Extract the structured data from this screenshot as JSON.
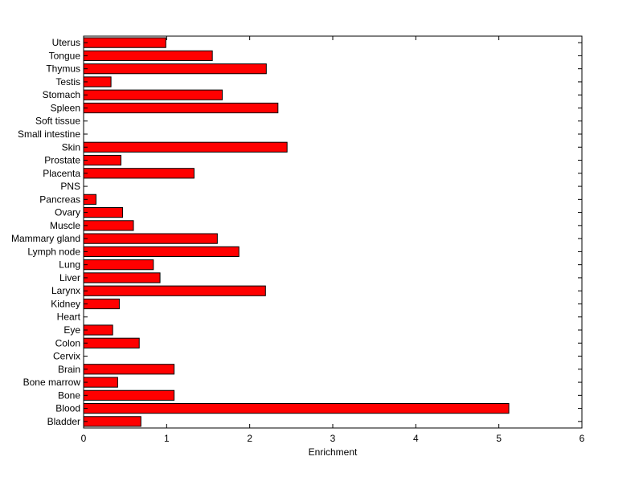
{
  "chart_data": {
    "type": "bar",
    "orientation": "horizontal",
    "categories": [
      "Uterus",
      "Tongue",
      "Thymus",
      "Testis",
      "Stomach",
      "Spleen",
      "Soft tissue",
      "Small intestine",
      "Skin",
      "Prostate",
      "Placenta",
      "PNS",
      "Pancreas",
      "Ovary",
      "Muscle",
      "Mammary gland",
      "Lymph node",
      "Lung",
      "Liver",
      "Larynx",
      "Kidney",
      "Heart",
      "Eye",
      "Colon",
      "Cervix",
      "Brain",
      "Bone marrow",
      "Bone",
      "Blood",
      "Bladder"
    ],
    "values": [
      0.99,
      1.55,
      2.2,
      0.33,
      1.67,
      2.34,
      0,
      0,
      2.45,
      0.45,
      1.33,
      0,
      0.15,
      0.47,
      0.6,
      1.61,
      1.87,
      0.84,
      0.92,
      2.19,
      0.43,
      0,
      0.35,
      0.67,
      0,
      1.09,
      0.41,
      1.09,
      5.12,
      0.69
    ],
    "xlabel": "Enrichment",
    "ylabel": "",
    "xlim": [
      0,
      6
    ],
    "xticks": [
      0,
      1,
      2,
      3,
      4,
      5,
      6
    ],
    "grid": false,
    "bar_color": "#ff0000",
    "edge_color": "#000000"
  }
}
